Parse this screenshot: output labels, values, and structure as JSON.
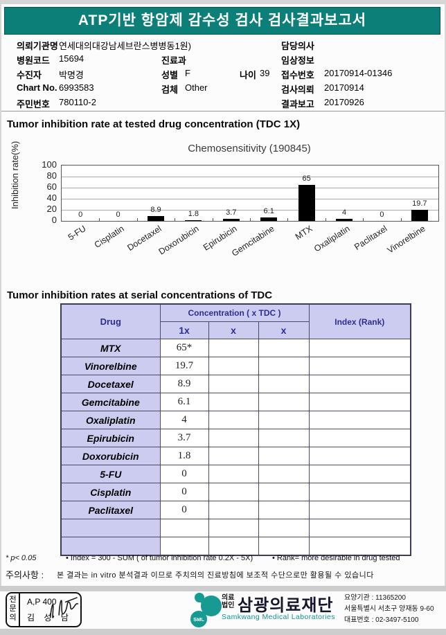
{
  "report": {
    "title": "ATP기반 항암제 감수성 검사 검사결과보고서"
  },
  "patient": {
    "org_label": "의뢰기관명",
    "org_value": "연세대의대강남세브란스병병동1원)",
    "hospital_code_label": "병원코드",
    "hospital_code": "15694",
    "name_label": "수진자",
    "name": "박명경",
    "chart_no_label": "Chart No.",
    "chart_no": "6993583",
    "resident_id_label": "주민번호",
    "resident_id": "780110-2",
    "department_label": "진료과",
    "department": "",
    "sex_label": "성별",
    "sex": "F",
    "age_label": "나이",
    "age": "39",
    "specimen_label": "검체",
    "specimen": "Other",
    "doctor_label": "담당의사",
    "doctor": "",
    "clinical_info_label": "임상정보",
    "clinical_info": "",
    "receipt_no_label": "접수번호",
    "receipt_no": "20170914-01346",
    "request_date_label": "검사의뢰",
    "request_date": "20170914",
    "report_date_label": "결과보고",
    "report_date": "20170926"
  },
  "sections": {
    "chart_section_title": "Tumor inhibition rate at tested drug concentration (TDC 1X)",
    "table_section_title": "Tumor inhibition rates at serial concentrations of TDC"
  },
  "chart_data": {
    "type": "bar",
    "title": "Chemosensitivity (190845)",
    "categories": [
      "5-FU",
      "Cisplatin",
      "Docetaxel",
      "Doxorubicin",
      "Epirubicin",
      "Gemcitabine",
      "MTX",
      "Oxaliplatin",
      "Paclitaxel",
      "Vinorelbine"
    ],
    "values": [
      0,
      0,
      8.9,
      1.8,
      3.7,
      6.1,
      65,
      4,
      0,
      19.7
    ],
    "value_labels": [
      "0",
      "0",
      "8.9",
      "1.8",
      "3.7",
      "6.1",
      "65",
      "4",
      "0",
      "19.7"
    ],
    "xlabel": "",
    "ylabel": "Inhibition rate(%)",
    "ylim": [
      0,
      100
    ],
    "yticks": [
      0,
      20,
      40,
      60,
      80,
      100
    ],
    "grid": true,
    "legend": false,
    "bar_color": "#000000"
  },
  "table": {
    "header": {
      "drug": "Drug",
      "concentration": "Concentration ( x TDC )",
      "c1": "1x",
      "c2": "x",
      "c3": "x",
      "index": "Index (Rank)"
    },
    "rows": [
      {
        "drug": "MTX",
        "c1": "65*",
        "c2": "",
        "c3": "",
        "index": ""
      },
      {
        "drug": "Vinorelbine",
        "c1": "19.7",
        "c2": "",
        "c3": "",
        "index": ""
      },
      {
        "drug": "Docetaxel",
        "c1": "8.9",
        "c2": "",
        "c3": "",
        "index": ""
      },
      {
        "drug": "Gemcitabine",
        "c1": "6.1",
        "c2": "",
        "c3": "",
        "index": ""
      },
      {
        "drug": "Oxaliplatin",
        "c1": "4",
        "c2": "",
        "c3": "",
        "index": ""
      },
      {
        "drug": "Epirubicin",
        "c1": "3.7",
        "c2": "",
        "c3": "",
        "index": ""
      },
      {
        "drug": "Doxorubicin",
        "c1": "1.8",
        "c2": "",
        "c3": "",
        "index": ""
      },
      {
        "drug": "5-FU",
        "c1": "0",
        "c2": "",
        "c3": "",
        "index": ""
      },
      {
        "drug": "Cisplatin",
        "c1": "0",
        "c2": "",
        "c3": "",
        "index": ""
      },
      {
        "drug": "Paclitaxel",
        "c1": "0",
        "c2": "",
        "c3": "",
        "index": ""
      },
      {
        "drug": "",
        "c1": "",
        "c2": "",
        "c3": "",
        "index": ""
      },
      {
        "drug": "",
        "c1": "",
        "c2": "",
        "c3": "",
        "index": ""
      }
    ]
  },
  "footnotes": {
    "p_note": "* p< 0.05",
    "index_note": "• Index = 300 - SUM ( of tumor inhibition rate 0.2X - 5X)",
    "rank_note": "• Rank= more desirable in drug tested",
    "caution_label": "주의사항 :",
    "caution_text": "본 결과는 in vitro 분석결과 이므로 주치의의 진료방침에 보조적 수단으로만 활용될 수 있습니다"
  },
  "footer": {
    "stamp": {
      "vertical_label": "전문의",
      "line1": "A,P 400",
      "line2": "김 성 남"
    },
    "company": {
      "logo_text": "SML",
      "org_type_line1": "의료",
      "org_type_line2": "법인",
      "name": "삼광의료재단",
      "name_en": "Samkwang Medical Laboratories",
      "info1": "요양기관 : 11365200",
      "info2": "서울특별시 서초구 양재동 9-60",
      "info3": "대표번호 : 02-3497-5100"
    },
    "colors": {
      "header_teal": "#0c8078",
      "logo_teal": "#169a92",
      "table_header_bg": "#ccccf0",
      "table_header_text": "#2d2d8e"
    }
  }
}
